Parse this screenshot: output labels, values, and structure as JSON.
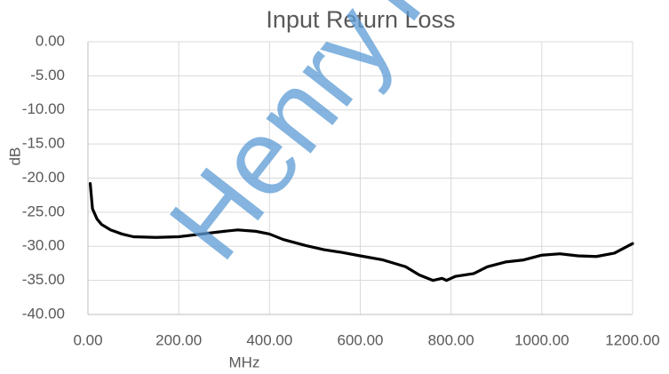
{
  "chart_data": {
    "type": "line",
    "title": "Input Return Loss",
    "x_label": "MHz",
    "y_label": "dB",
    "watermark": "HenryTech",
    "x": [
      5,
      10,
      20,
      30,
      50,
      75,
      100,
      150,
      200,
      250,
      300,
      330,
      370,
      400,
      430,
      480,
      520,
      560,
      600,
      650,
      700,
      730,
      760,
      780,
      790,
      810,
      850,
      880,
      920,
      960,
      1000,
      1040,
      1080,
      1120,
      1160,
      1200
    ],
    "series": [
      {
        "name": "Input Return Loss",
        "color": "#000000",
        "values": [
          -20.8,
          -24.5,
          -26.0,
          -26.8,
          -27.6,
          -28.2,
          -28.6,
          -28.7,
          -28.6,
          -28.2,
          -27.8,
          -27.6,
          -27.8,
          -28.2,
          -29.0,
          -29.9,
          -30.5,
          -30.9,
          -31.4,
          -32.0,
          -33.0,
          -34.2,
          -35.0,
          -34.7,
          -35.0,
          -34.4,
          -34.0,
          -33.0,
          -32.3,
          -32.0,
          -31.3,
          -31.1,
          -31.4,
          -31.5,
          -31.0,
          -29.6
        ]
      }
    ],
    "xlim": [
      0,
      1200
    ],
    "xticks": [
      {
        "value": 0,
        "label": "0.00"
      },
      {
        "value": 200,
        "label": "200.00"
      },
      {
        "value": 400,
        "label": "400.00"
      },
      {
        "value": 600,
        "label": "600.00"
      },
      {
        "value": 800,
        "label": "800.00"
      },
      {
        "value": 1000,
        "label": "1000.00"
      },
      {
        "value": 1200,
        "label": "1200.00"
      }
    ],
    "ylim": [
      -40,
      0
    ],
    "yticks": [
      {
        "value": 0,
        "label": "0.00"
      },
      {
        "value": -5,
        "label": "-5.00"
      },
      {
        "value": -10,
        "label": "-10.00"
      },
      {
        "value": -15,
        "label": "-15.00"
      },
      {
        "value": -20,
        "label": "-20.00"
      },
      {
        "value": -25,
        "label": "-25.00"
      },
      {
        "value": -30,
        "label": "-30.00"
      },
      {
        "value": -35,
        "label": "-35.00"
      },
      {
        "value": -40,
        "label": "-40.00"
      }
    ],
    "grid": true
  }
}
